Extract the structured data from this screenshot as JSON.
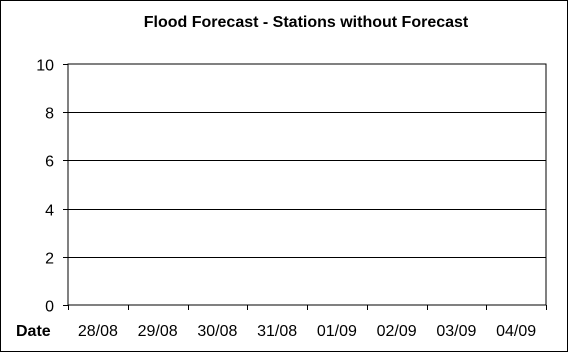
{
  "chart_data": {
    "type": "line",
    "title": "Flood Forecast - Stations without Forecast",
    "xlabel": "Date",
    "ylabel": "",
    "categories": [
      "28/08",
      "29/08",
      "30/08",
      "31/08",
      "01/09",
      "02/09",
      "03/09",
      "04/09"
    ],
    "ylim": [
      0,
      10
    ],
    "yticks": [
      0,
      2,
      4,
      6,
      8,
      10
    ],
    "grid": true,
    "series": []
  }
}
